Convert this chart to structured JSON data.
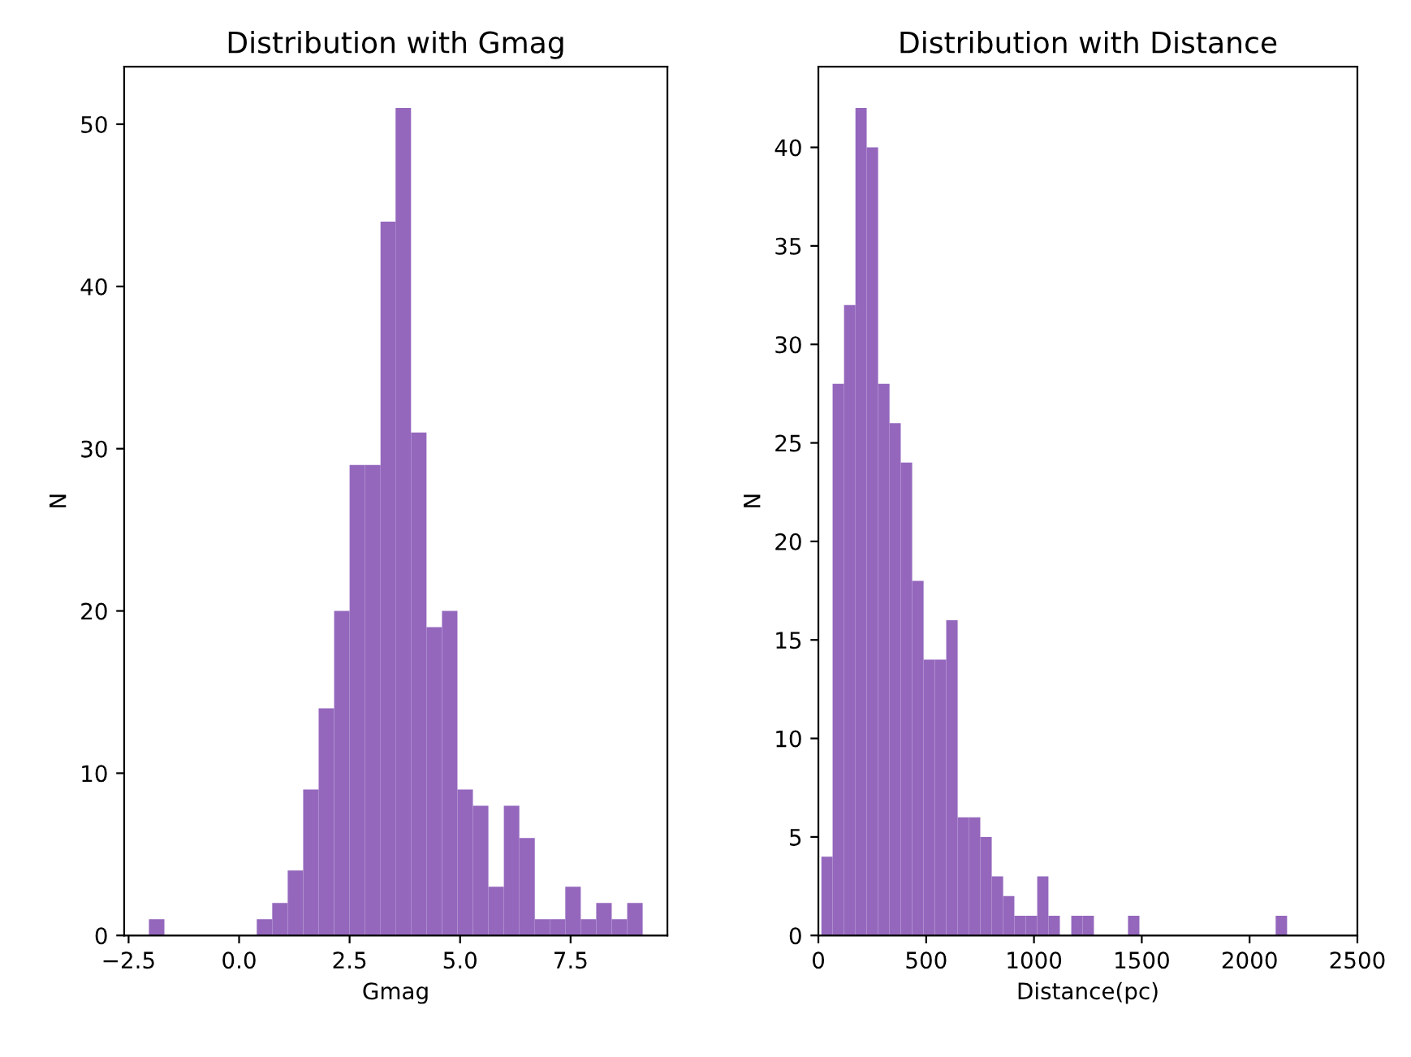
{
  "chart_data": [
    {
      "type": "histogram",
      "title": "Distribution with Gmag",
      "xlabel": "Gmag",
      "ylabel": "N",
      "color": "#9467bd",
      "bins": [
        -2.04,
        -1.69,
        0.4,
        0.75,
        1.1,
        1.45,
        1.8,
        2.15,
        2.5,
        2.85,
        3.2,
        3.54,
        3.89,
        4.24,
        4.59,
        4.94,
        5.29,
        5.64,
        5.99,
        6.34,
        6.69,
        7.03,
        7.38,
        7.73,
        8.08,
        8.43,
        8.78,
        9.13
      ],
      "values": [
        1,
        0,
        1,
        2,
        4,
        9,
        14,
        20,
        29,
        29,
        44,
        51,
        31,
        19,
        20,
        9,
        8,
        3,
        8,
        6,
        1,
        1,
        3,
        1,
        2,
        1,
        2
      ],
      "xlim": [
        -2.6,
        9.69
      ],
      "ylim": [
        0,
        53.55
      ],
      "xticks": [
        {
          "value": -2.5,
          "label": "−2.5"
        },
        {
          "value": 0,
          "label": "0.0"
        },
        {
          "value": 2.5,
          "label": "2.5"
        },
        {
          "value": 5,
          "label": "5.0"
        },
        {
          "value": 7.5,
          "label": "7.5"
        }
      ],
      "yticks": [
        0,
        10,
        20,
        30,
        40,
        50
      ],
      "grid": false,
      "legend": false
    },
    {
      "type": "histogram",
      "title": "Distribution with Distance",
      "xlabel": "Distance(pc)",
      "ylabel": "N",
      "color": "#9467bd",
      "bins": [
        14,
        66,
        119,
        172,
        224,
        277,
        330,
        382,
        435,
        488,
        540,
        593,
        646,
        699,
        751,
        804,
        857,
        909,
        962,
        1015,
        1067,
        1120,
        1173,
        1226,
        1278,
        1331,
        1384,
        1436,
        1489,
        1542,
        1594,
        1647,
        1700,
        1752,
        1805,
        1858,
        1911,
        1963,
        2016,
        2069,
        2121,
        2174
      ],
      "values": [
        4,
        28,
        32,
        42,
        40,
        28,
        26,
        24,
        18,
        14,
        14,
        16,
        6,
        6,
        5,
        3,
        2,
        1,
        1,
        3,
        1,
        0,
        1,
        1,
        0,
        0,
        0,
        1,
        0,
        0,
        0,
        0,
        0,
        0,
        0,
        0,
        0,
        0,
        0,
        0,
        1
      ],
      "xlim": [
        0,
        2500
      ],
      "ylim": [
        0,
        44.1
      ],
      "xticks": [
        0,
        500,
        1000,
        1500,
        2000,
        2500
      ],
      "yticks": [
        0,
        5,
        10,
        15,
        20,
        25,
        30,
        35,
        40
      ],
      "grid": false,
      "legend": false
    }
  ]
}
